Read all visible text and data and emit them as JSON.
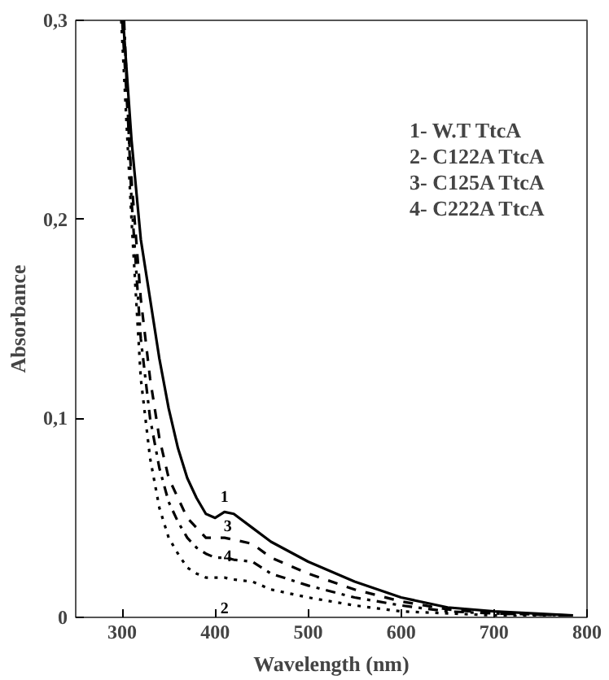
{
  "chart_data": {
    "type": "line",
    "xlabel": "Wavelength (nm)",
    "ylabel": "Absorbance",
    "xlim": [
      250,
      800
    ],
    "ylim": [
      0,
      0.3
    ],
    "xticks": [
      300,
      400,
      500,
      600,
      700,
      800
    ],
    "yticks": [
      {
        "value": 0,
        "label": "0"
      },
      {
        "value": 0.1,
        "label": "0,1"
      },
      {
        "value": 0.2,
        "label": "0,2"
      },
      {
        "value": 0.3,
        "label": "0,3"
      }
    ],
    "grid": false,
    "marker": "none",
    "series": [
      {
        "name": "1",
        "color": "#000000",
        "line_style": "solid",
        "x": [
          301,
          310,
          320,
          330,
          340,
          350,
          360,
          370,
          380,
          390,
          400,
          410,
          420,
          440,
          460,
          500,
          550,
          600,
          650,
          700,
          785
        ],
        "values": [
          0.3,
          0.24,
          0.19,
          0.16,
          0.13,
          0.105,
          0.085,
          0.07,
          0.06,
          0.052,
          0.05,
          0.053,
          0.052,
          0.045,
          0.038,
          0.028,
          0.018,
          0.01,
          0.005,
          0.003,
          0.001
        ]
      },
      {
        "name": "2",
        "color": "#000000",
        "line_style": "dotted",
        "x": [
          299,
          310,
          320,
          330,
          340,
          350,
          360,
          370,
          380,
          390,
          400,
          410,
          420,
          440,
          460,
          500,
          550,
          600,
          650,
          700,
          770
        ],
        "values": [
          0.3,
          0.2,
          0.12,
          0.08,
          0.055,
          0.04,
          0.032,
          0.025,
          0.022,
          0.02,
          0.02,
          0.02,
          0.019,
          0.018,
          0.014,
          0.01,
          0.006,
          0.003,
          0.002,
          0.001,
          0
        ]
      },
      {
        "name": "3",
        "color": "#000000",
        "line_style": "dashed",
        "x": [
          300,
          310,
          320,
          330,
          340,
          350,
          360,
          370,
          380,
          390,
          400,
          410,
          420,
          440,
          460,
          500,
          550,
          600,
          650,
          700,
          780
        ],
        "values": [
          0.3,
          0.22,
          0.16,
          0.12,
          0.09,
          0.07,
          0.06,
          0.05,
          0.045,
          0.04,
          0.04,
          0.04,
          0.039,
          0.037,
          0.03,
          0.022,
          0.014,
          0.008,
          0.004,
          0.002,
          0.001
        ]
      },
      {
        "name": "4",
        "color": "#000000",
        "line_style": "dashdot",
        "x": [
          302,
          310,
          320,
          330,
          340,
          350,
          360,
          370,
          380,
          390,
          400,
          410,
          420,
          440,
          460,
          500,
          550,
          600,
          650,
          700,
          775
        ],
        "values": [
          0.3,
          0.21,
          0.14,
          0.1,
          0.075,
          0.058,
          0.048,
          0.04,
          0.035,
          0.032,
          0.03,
          0.03,
          0.029,
          0.028,
          0.022,
          0.016,
          0.01,
          0.006,
          0.003,
          0.002,
          0.001
        ]
      }
    ],
    "annotations": [
      "1- W.T TtcA",
      "2- C122A TtcA",
      "3- C125A TtcA",
      "4- C222A TtcA"
    ]
  }
}
